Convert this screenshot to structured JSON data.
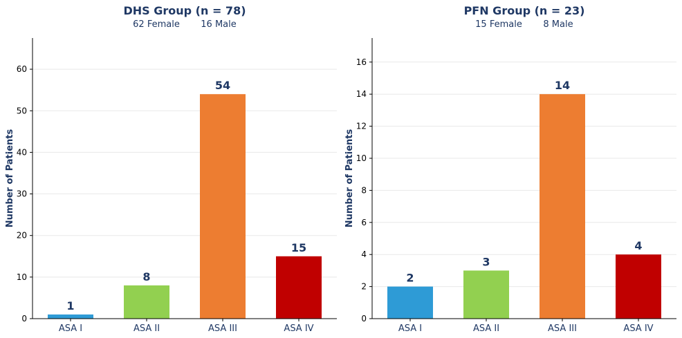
{
  "chart_data": [
    {
      "type": "bar",
      "title": "DHS Group (n = 78)",
      "subtitle_female": "62 Female",
      "subtitle_male": "16 Male",
      "ylabel": "Number of Patients",
      "xlabel": "",
      "categories": [
        "ASA I",
        "ASA II",
        "ASA III",
        "ASA IV"
      ],
      "values": [
        1,
        8,
        54,
        15
      ],
      "colors": [
        "#2e9bd6",
        "#92d050",
        "#ed7d31",
        "#c00000"
      ],
      "ylim": [
        0,
        67.5
      ],
      "yticks": [
        0,
        10,
        20,
        30,
        40,
        50,
        60
      ],
      "grid": true,
      "legend": "none"
    },
    {
      "type": "bar",
      "title": "PFN Group (n = 23)",
      "subtitle_female": "15 Female",
      "subtitle_male": "8 Male",
      "ylabel": "Number of Patients",
      "xlabel": "",
      "categories": [
        "ASA I",
        "ASA II",
        "ASA III",
        "ASA IV"
      ],
      "values": [
        2,
        3,
        14,
        4
      ],
      "colors": [
        "#2e9bd6",
        "#92d050",
        "#ed7d31",
        "#c00000"
      ],
      "ylim": [
        0,
        17.5
      ],
      "yticks": [
        0,
        2,
        4,
        6,
        8,
        10,
        12,
        14,
        16
      ],
      "grid": true,
      "legend": "none"
    }
  ]
}
